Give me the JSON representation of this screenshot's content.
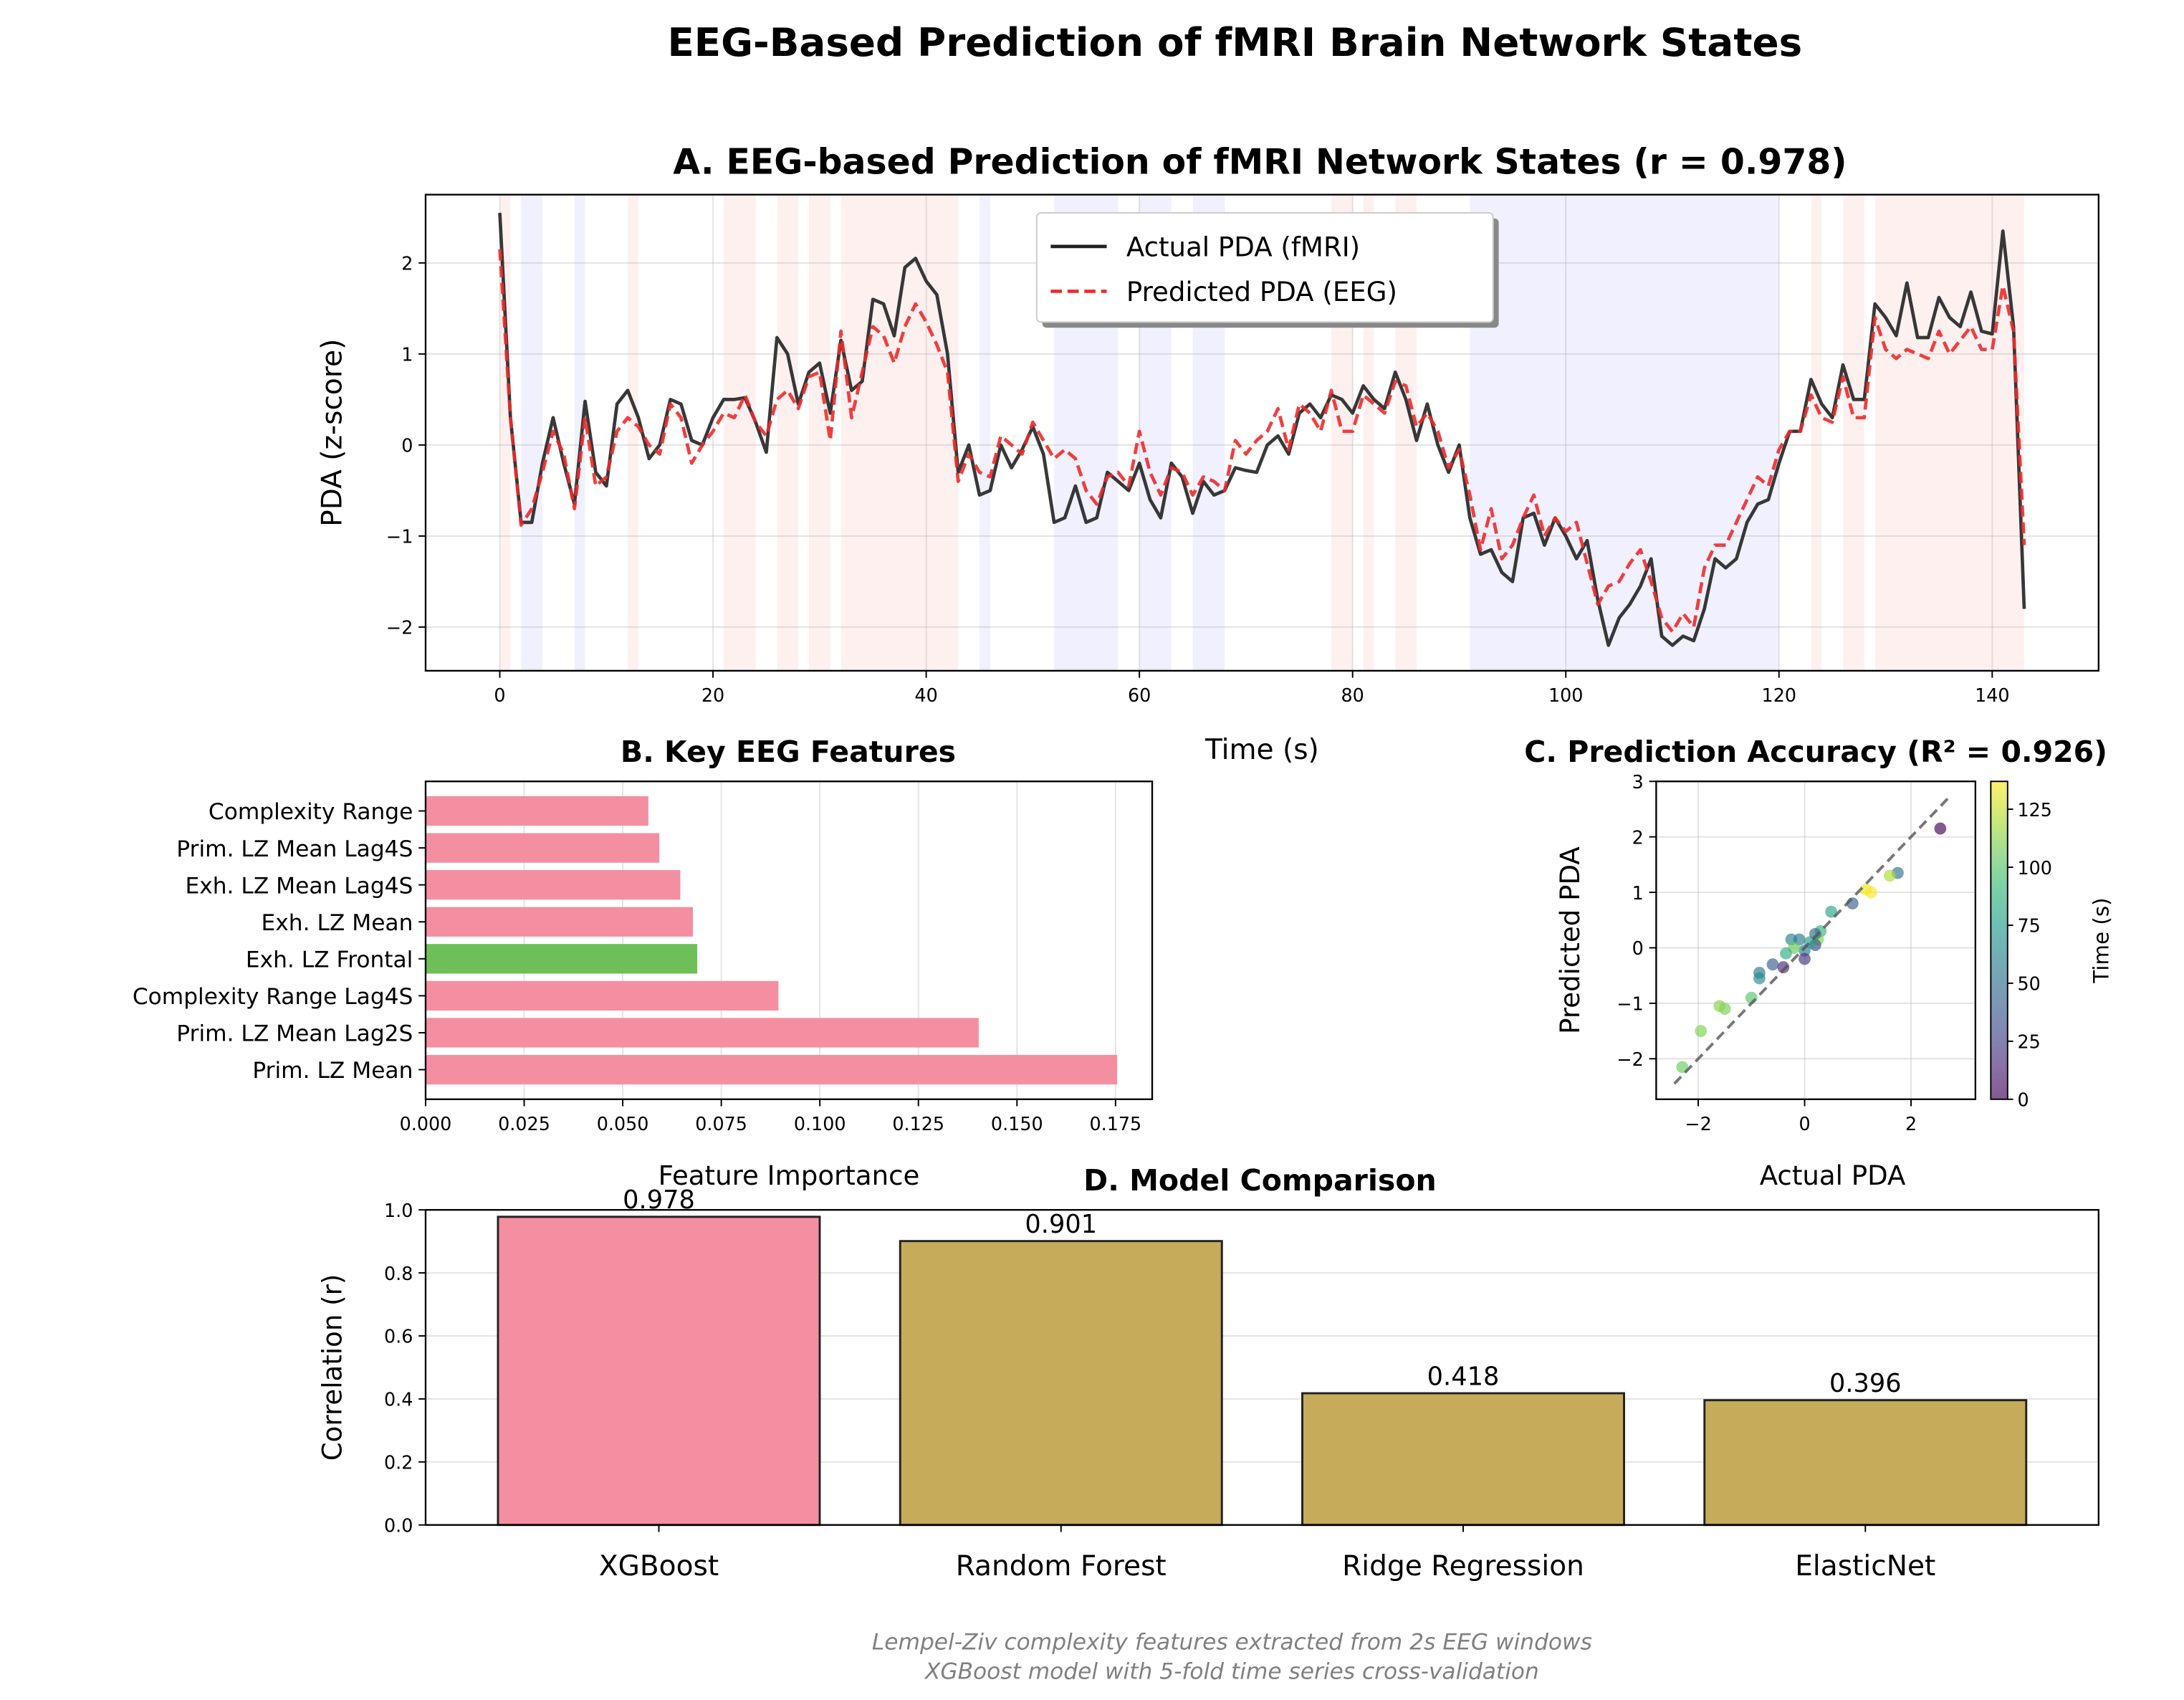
{
  "title": "EEG-Based Prediction of fMRI Brain Network States",
  "footnote": [
    "Lempel-Ziv complexity features extracted from 2s EEG windows",
    "XGBoost model with 5-fold time series cross-validation"
  ],
  "chart_data": [
    {
      "type": "line",
      "title": "A. EEG-based Prediction of fMRI Network States (r = 0.978)",
      "xlabel": "Time (s)",
      "ylabel": "PDA (z-score)",
      "x": [
        0,
        1,
        2,
        3,
        4,
        5,
        6,
        7,
        8,
        9,
        10,
        11,
        12,
        13,
        14,
        15,
        16,
        17,
        18,
        19,
        20,
        21,
        22,
        23,
        24,
        25,
        26,
        27,
        28,
        29,
        30,
        31,
        32,
        33,
        34,
        35,
        36,
        37,
        38,
        39,
        40,
        41,
        42,
        43,
        44,
        45,
        46,
        47,
        48,
        49,
        50,
        51,
        52,
        53,
        54,
        55,
        56,
        57,
        58,
        59,
        60,
        61,
        62,
        63,
        64,
        65,
        66,
        67,
        68,
        69,
        70,
        71,
        72,
        73,
        74,
        75,
        76,
        77,
        78,
        79,
        80,
        81,
        82,
        83,
        84,
        85,
        86,
        87,
        88,
        89,
        90,
        91,
        92,
        93,
        94,
        95,
        96,
        97,
        98,
        99,
        100,
        101,
        102,
        103,
        104,
        105,
        106,
        107,
        108,
        109,
        110,
        111,
        112,
        113,
        114,
        115,
        116,
        117,
        118,
        119,
        120,
        121,
        122,
        123,
        124,
        125,
        126,
        127,
        128,
        129,
        130,
        131,
        132,
        133,
        134,
        135,
        136,
        137,
        138,
        139,
        140,
        141,
        142,
        143
      ],
      "series": [
        {
          "name": "Actual PDA (fMRI)",
          "color": "#222222",
          "dash": false,
          "values": [
            2.55,
            0.3,
            -0.85,
            -0.85,
            -0.2,
            0.3,
            -0.2,
            -0.65,
            0.48,
            -0.3,
            -0.45,
            0.45,
            0.6,
            0.3,
            -0.15,
            0.0,
            0.5,
            0.45,
            0.05,
            0.0,
            0.3,
            0.5,
            0.5,
            0.52,
            0.25,
            -0.08,
            1.18,
            1.0,
            0.45,
            0.8,
            0.9,
            0.35,
            1.15,
            0.6,
            0.7,
            1.6,
            1.55,
            1.2,
            1.95,
            2.05,
            1.8,
            1.65,
            1.0,
            -0.3,
            0.0,
            -0.55,
            -0.5,
            0.0,
            -0.25,
            -0.05,
            0.2,
            -0.1,
            -0.85,
            -0.8,
            -0.45,
            -0.85,
            -0.8,
            -0.3,
            -0.4,
            -0.5,
            -0.2,
            -0.6,
            -0.8,
            -0.2,
            -0.35,
            -0.75,
            -0.4,
            -0.55,
            -0.5,
            -0.25,
            -0.28,
            -0.3,
            0.0,
            0.1,
            -0.1,
            0.35,
            0.45,
            0.3,
            0.55,
            0.5,
            0.35,
            0.65,
            0.5,
            0.4,
            0.8,
            0.5,
            0.05,
            0.45,
            0.0,
            -0.3,
            0.0,
            -0.8,
            -1.2,
            -1.15,
            -1.4,
            -1.5,
            -0.8,
            -0.75,
            -1.1,
            -0.8,
            -1.0,
            -1.25,
            -1.05,
            -1.7,
            -2.2,
            -1.9,
            -1.75,
            -1.55,
            -1.25,
            -2.1,
            -2.2,
            -2.1,
            -2.15,
            -1.8,
            -1.25,
            -1.35,
            -1.25,
            -0.85,
            -0.65,
            -0.6,
            -0.2,
            0.15,
            0.15,
            0.72,
            0.45,
            0.3,
            0.88,
            0.5,
            0.5,
            1.55,
            1.4,
            1.2,
            1.78,
            1.18,
            1.18,
            1.62,
            1.4,
            1.3,
            1.68,
            1.25,
            1.22,
            2.35,
            1.3,
            -1.8
          ]
        },
        {
          "name": "Predicted PDA (EEG)",
          "color": "#ee2a2a",
          "dash": true,
          "values": [
            2.15,
            0.3,
            -0.88,
            -0.7,
            -0.3,
            0.15,
            -0.1,
            -0.7,
            0.3,
            -0.45,
            -0.35,
            0.15,
            0.3,
            0.2,
            0.0,
            -0.1,
            0.45,
            0.3,
            -0.2,
            0.0,
            0.15,
            0.35,
            0.3,
            0.55,
            0.25,
            0.1,
            0.5,
            0.6,
            0.4,
            0.75,
            0.8,
            0.05,
            1.25,
            0.3,
            0.8,
            1.3,
            1.2,
            0.9,
            1.3,
            1.55,
            1.35,
            1.1,
            0.8,
            -0.4,
            -0.1,
            -0.3,
            -0.35,
            0.1,
            0.0,
            -0.1,
            0.25,
            0.05,
            -0.15,
            -0.05,
            -0.15,
            -0.5,
            -0.65,
            -0.35,
            -0.3,
            -0.45,
            0.15,
            -0.3,
            -0.55,
            -0.25,
            -0.3,
            -0.55,
            -0.35,
            -0.4,
            -0.5,
            0.05,
            -0.1,
            0.05,
            0.15,
            0.4,
            -0.05,
            0.45,
            0.35,
            0.15,
            0.6,
            0.15,
            0.15,
            0.55,
            0.45,
            0.35,
            0.7,
            0.65,
            0.2,
            0.35,
            0.15,
            -0.25,
            -0.05,
            -0.55,
            -1.15,
            -0.7,
            -1.25,
            -1.1,
            -0.8,
            -0.55,
            -1.0,
            -0.8,
            -0.95,
            -0.85,
            -1.3,
            -1.75,
            -1.55,
            -1.5,
            -1.3,
            -1.15,
            -1.5,
            -1.9,
            -2.05,
            -1.85,
            -2.0,
            -1.35,
            -1.1,
            -1.1,
            -0.85,
            -0.6,
            -0.35,
            -0.45,
            -0.05,
            0.15,
            0.15,
            0.55,
            0.3,
            0.25,
            0.75,
            0.3,
            0.3,
            1.4,
            1.05,
            0.95,
            1.05,
            1.0,
            0.95,
            1.25,
            1.0,
            1.15,
            1.3,
            1.05,
            1.05,
            1.75,
            1.25,
            -1.1
          ]
        }
      ],
      "regions": [
        {
          "start": 0,
          "end": 1,
          "color": "#ff0000"
        },
        {
          "start": 12,
          "end": 13,
          "color": "#ff0000"
        },
        {
          "start": 21,
          "end": 24,
          "color": "#ff0000"
        },
        {
          "start": 26,
          "end": 28,
          "color": "#ff0000"
        },
        {
          "start": 29,
          "end": 31,
          "color": "#ff0000"
        },
        {
          "start": 32,
          "end": 43,
          "color": "#ff0000"
        },
        {
          "start": 78,
          "end": 80,
          "color": "#ff0000"
        },
        {
          "start": 81,
          "end": 82,
          "color": "#ff0000"
        },
        {
          "start": 84,
          "end": 86,
          "color": "#ff0000"
        },
        {
          "start": 123,
          "end": 124,
          "color": "#ff0000"
        },
        {
          "start": 126,
          "end": 128,
          "color": "#ff0000"
        },
        {
          "start": 129,
          "end": 143,
          "color": "#ff0000"
        },
        {
          "start": 2,
          "end": 4,
          "color": "#0000ff"
        },
        {
          "start": 7,
          "end": 8,
          "color": "#0000ff"
        },
        {
          "start": 45,
          "end": 46,
          "color": "#0000ff"
        },
        {
          "start": 52,
          "end": 58,
          "color": "#0000ff"
        },
        {
          "start": 60,
          "end": 63,
          "color": "#0000ff"
        },
        {
          "start": 65,
          "end": 68,
          "color": "#0000ff"
        },
        {
          "start": 91,
          "end": 120,
          "color": "#0000ff"
        }
      ],
      "xlim": [
        -6.96,
        149.98
      ],
      "xticks": [
        0,
        20,
        40,
        60,
        80,
        100,
        120,
        140
      ],
      "ylim": [
        -2.48,
        2.75
      ],
      "yticks": [
        {
          "value": -2,
          "label": "−2"
        },
        {
          "value": -1,
          "label": "−1"
        },
        0,
        1,
        2
      ],
      "grid": "both",
      "legend": "upper center"
    },
    {
      "type": "barh",
      "title": "B. Key EEG Features",
      "xlabel": "Feature Importance",
      "categories": [
        "Prim. LZ Mean",
        "Prim. LZ Mean Lag2S",
        "Complexity Range Lag4S",
        "Exh. LZ Frontal",
        "Exh. LZ Mean",
        "Exh. LZ Mean Lag4S",
        "Prim. LZ Mean Lag4S",
        "Complexity Range"
      ],
      "values": [
        0.1754,
        0.1403,
        0.0895,
        0.0689,
        0.0678,
        0.0646,
        0.0593,
        0.0565
      ],
      "colors": [
        "#f48fa1",
        "#f48fa1",
        "#f48fa1",
        "#6dbf58",
        "#f48fa1",
        "#f48fa1",
        "#f48fa1",
        "#f48fa1"
      ],
      "xlim": [
        0,
        0.1843
      ],
      "xticks": [
        {
          "value": 0,
          "label": "0.000"
        },
        {
          "value": 0.025,
          "label": "0.025"
        },
        {
          "value": 0.05,
          "label": "0.050"
        },
        {
          "value": 0.075,
          "label": "0.075"
        },
        {
          "value": 0.1,
          "label": "0.100"
        },
        {
          "value": 0.125,
          "label": "0.125"
        },
        {
          "value": 0.15,
          "label": "0.150"
        },
        {
          "value": 0.175,
          "label": "0.175"
        }
      ],
      "grid": "x"
    },
    {
      "type": "scatter",
      "title": "C. Prediction Accuracy (R² = 0.926)",
      "xlabel": "Actual PDA",
      "ylabel": "Predicted PDA",
      "x": [
        2.55,
        1.75,
        1.6,
        1.25,
        1.15,
        0.9,
        0.5,
        0.3,
        0.25,
        0.2,
        0.2,
        0.0,
        -0.1,
        -0.25,
        0.0,
        -0.2,
        -0.35,
        -0.4,
        -0.6,
        -0.85,
        -0.85,
        -1.0,
        -1.5,
        -1.6,
        -1.95,
        -2.3,
        0.1
      ],
      "y": [
        2.15,
        1.35,
        1.3,
        1.0,
        1.05,
        0.8,
        0.65,
        0.3,
        0.15,
        0.05,
        0.25,
        -0.05,
        0.15,
        0.15,
        -0.2,
        0.0,
        -0.1,
        -0.35,
        -0.3,
        -0.45,
        -0.55,
        -0.9,
        -1.1,
        -1.05,
        -1.5,
        -2.15,
        0.1
      ],
      "c": [
        0,
        50,
        120,
        137,
        135,
        40,
        80,
        90,
        110,
        30,
        45,
        60,
        55,
        60,
        20,
        105,
        85,
        15,
        40,
        55,
        65,
        100,
        108,
        112,
        110,
        105,
        75
      ],
      "identity_line": [
        -2.45,
        2.75
      ],
      "xlim": [
        -2.79,
        3.21
      ],
      "xticks": [
        {
          "value": -2,
          "label": "−2"
        },
        0,
        2
      ],
      "ylim": [
        -2.73,
        3.0
      ],
      "yticks": [
        {
          "value": -2,
          "label": "−2"
        },
        {
          "value": -1,
          "label": "−1"
        },
        0,
        1,
        2,
        3
      ],
      "clim": [
        0,
        137
      ],
      "cticks": [
        0,
        25,
        50,
        75,
        100,
        125
      ],
      "colorbar_label": "Time (s)",
      "colormap": "viridis",
      "grid": "both"
    },
    {
      "type": "bar",
      "title": "D. Model Comparison",
      "ylabel": "Correlation (r)",
      "categories": [
        "XGBoost",
        "Random Forest",
        "Ridge Regression",
        "ElasticNet"
      ],
      "values": [
        0.978,
        0.901,
        0.418,
        0.396
      ],
      "colors": [
        "#f48fa1",
        "#c6ab5a",
        "#c6ab5a",
        "#c6ab5a"
      ],
      "ylim": [
        0,
        1
      ],
      "yticks": [
        {
          "value": 0,
          "label": "0.0"
        },
        {
          "value": 0.2,
          "label": "0.2"
        },
        {
          "value": 0.4,
          "label": "0.4"
        },
        {
          "value": 0.6,
          "label": "0.6"
        },
        {
          "value": 0.8,
          "label": "0.8"
        },
        {
          "value": 1,
          "label": "1.0"
        }
      ],
      "grid": "y"
    }
  ]
}
